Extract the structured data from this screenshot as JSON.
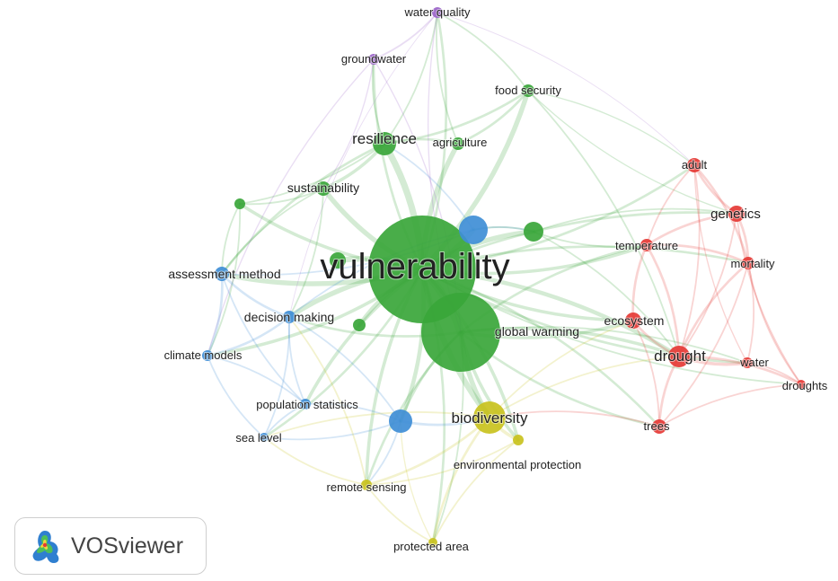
{
  "colors": {
    "green": "#3aa63a",
    "red": "#e53935",
    "blue": "#3f8ed6",
    "yellow": "#c9c21e",
    "purple": "#9a63c8"
  },
  "nodes": [
    {
      "id": "vulnerability",
      "label": "vulnerability",
      "cluster": "green"
    },
    {
      "id": "global_warming",
      "label": "global warming",
      "cluster": "green"
    },
    {
      "id": "resilience",
      "label": "resilience",
      "cluster": "green"
    },
    {
      "id": "agriculture",
      "label": "agriculture",
      "cluster": "green"
    },
    {
      "id": "food_security",
      "label": "food security",
      "cluster": "green"
    },
    {
      "id": "sustainability",
      "label": "sustainability",
      "cluster": "green"
    },
    {
      "id": "g_small1",
      "label": "",
      "cluster": "green"
    },
    {
      "id": "g_small2",
      "label": "",
      "cluster": "green"
    },
    {
      "id": "g_small3",
      "label": "",
      "cluster": "green"
    },
    {
      "id": "g_small4",
      "label": "",
      "cluster": "green"
    },
    {
      "id": "water_quality",
      "label": "water quality",
      "cluster": "purple"
    },
    {
      "id": "groundwater",
      "label": "groundwater",
      "cluster": "purple"
    },
    {
      "id": "adult",
      "label": "adult",
      "cluster": "red"
    },
    {
      "id": "genetics",
      "label": "genetics",
      "cluster": "red"
    },
    {
      "id": "temperature",
      "label": "temperature",
      "cluster": "red"
    },
    {
      "id": "mortality",
      "label": "mortality",
      "cluster": "red"
    },
    {
      "id": "ecosystem",
      "label": "ecosystem",
      "cluster": "red"
    },
    {
      "id": "drought",
      "label": "drought",
      "cluster": "red"
    },
    {
      "id": "water",
      "label": "water",
      "cluster": "red"
    },
    {
      "id": "droughts",
      "label": "droughts",
      "cluster": "red"
    },
    {
      "id": "trees",
      "label": "trees",
      "cluster": "red"
    },
    {
      "id": "assessment_method",
      "label": "assessment method",
      "cluster": "blue"
    },
    {
      "id": "decision_making",
      "label": "decision making",
      "cluster": "blue"
    },
    {
      "id": "climate_models",
      "label": "climate models",
      "cluster": "blue"
    },
    {
      "id": "population_statistics",
      "label": "population statistics",
      "cluster": "blue"
    },
    {
      "id": "sea_level",
      "label": "sea level",
      "cluster": "blue"
    },
    {
      "id": "b_upper",
      "label": "",
      "cluster": "blue"
    },
    {
      "id": "b_lower",
      "label": "",
      "cluster": "blue"
    },
    {
      "id": "biodiversity",
      "label": "biodiversity",
      "cluster": "yellow"
    },
    {
      "id": "environmental_protection",
      "label": "environmental protection",
      "cluster": "yellow"
    },
    {
      "id": "remote_sensing",
      "label": "remote sensing",
      "cluster": "yellow"
    },
    {
      "id": "protected_area",
      "label": "protected area",
      "cluster": "yellow"
    }
  ],
  "brand": {
    "name": "VOSviewer"
  }
}
